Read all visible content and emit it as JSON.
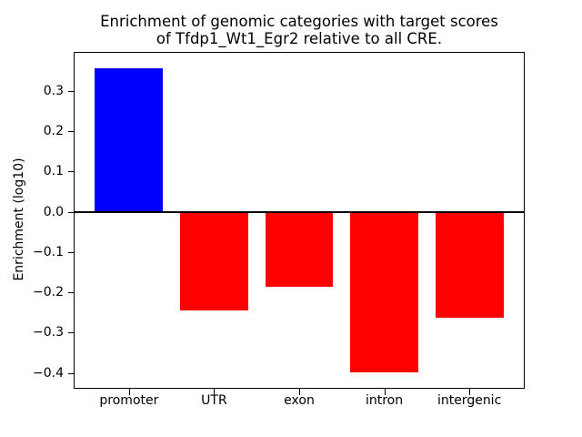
{
  "figure": {
    "title_line1": "Enrichment of genomic categories with target scores",
    "title_line2": "of Tfdp1_Wt1_Egr2 relative to all CRE.",
    "ylabel": "Enrichment (log10)"
  },
  "chart_data": {
    "type": "bar",
    "title": "Enrichment of genomic categories with target scores\nof Tfdp1_Wt1_Egr2 relative to all CRE.",
    "xlabel": "",
    "ylabel": "Enrichment (log10)",
    "categories": [
      "promoter",
      "UTR",
      "exon",
      "intron",
      "intergenic"
    ],
    "values": [
      0.357,
      -0.245,
      -0.187,
      -0.399,
      -0.262
    ],
    "positive_color": "#0000ff",
    "negative_color": "#ff0000",
    "bar_colors": [
      "#0000ff",
      "#ff0000",
      "#ff0000",
      "#ff0000",
      "#ff0000"
    ],
    "yticks": [
      0.3,
      0.2,
      0.1,
      0.0,
      -0.1,
      -0.2,
      -0.3,
      -0.4
    ],
    "ytick_labels": [
      "0.3",
      "0.2",
      "0.1",
      "0.0",
      "−0.1",
      "−0.2",
      "−0.3",
      "−0.4"
    ],
    "ylim": [
      -0.4371,
      0.3944
    ],
    "bar_width_fraction": 0.8,
    "x_padding_units": 0.64,
    "grid": false,
    "legend": null,
    "zero_line": true,
    "axis_color": "#000000",
    "background_color": "#ffffff"
  }
}
